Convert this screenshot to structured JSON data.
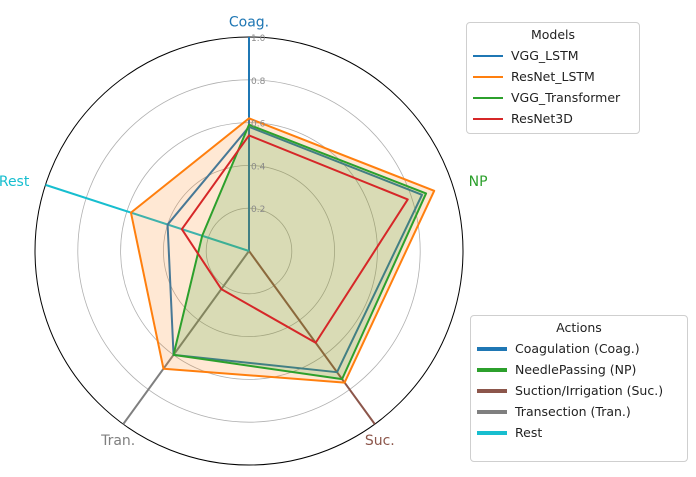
{
  "chart_data": {
    "type": "radar",
    "axes": [
      {
        "key": "coag",
        "label": "Coag.",
        "color": "#1f77b4"
      },
      {
        "key": "np",
        "label": "NP",
        "color": "#2ca02c"
      },
      {
        "key": "suc",
        "label": "Suc.",
        "color": "#8c564b"
      },
      {
        "key": "tran",
        "label": "Tran.",
        "color": "#7f7f7f"
      },
      {
        "key": "rest",
        "label": "Rest",
        "color": "#17becf"
      }
    ],
    "rlim": [
      0,
      1
    ],
    "rticks": [
      "0.2",
      "0.4",
      "0.6",
      "0.8",
      "1.0"
    ],
    "rtick_values": [
      0.2,
      0.4,
      0.6,
      0.8,
      1.0
    ],
    "series": [
      {
        "name": "VGG_LSTM",
        "color": "#1f77b4",
        "values": [
          0.58,
          0.85,
          0.7,
          0.6,
          0.4
        ],
        "fill": false
      },
      {
        "name": "ResNet_LSTM",
        "color": "#ff7f0e",
        "values": [
          0.62,
          0.91,
          0.76,
          0.68,
          0.58
        ],
        "fill": true
      },
      {
        "name": "VGG_Transformer",
        "color": "#2ca02c",
        "values": [
          0.59,
          0.87,
          0.74,
          0.6,
          0.23
        ],
        "fill": true
      },
      {
        "name": "ResNet3D",
        "color": "#d62728",
        "values": [
          0.54,
          0.78,
          0.53,
          0.22,
          0.33
        ],
        "fill": false
      }
    ],
    "action_series": [
      {
        "name": "Coagulation (Coag.)",
        "color": "#1f77b4",
        "value": 1.0
      },
      {
        "name": "NeedlePassing (NP)",
        "color": "#2ca02c",
        "value": 0.0
      },
      {
        "name": "Suction/Irrigation (Suc.)",
        "color": "#8c564b",
        "value": 1.0
      },
      {
        "name": "Transection (Tran.)",
        "color": "#7f7f7f",
        "value": 1.0
      },
      {
        "name": "Rest",
        "color": "#17becf",
        "value": 1.0
      }
    ]
  },
  "legends": {
    "models_title": "Models",
    "actions_title": "Actions"
  }
}
